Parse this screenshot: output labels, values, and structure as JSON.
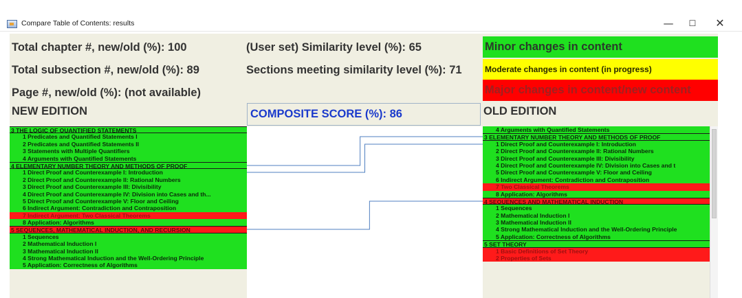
{
  "window": {
    "title": "Compare Table of Contents: results",
    "minimize": "—",
    "maximize": "☐",
    "close": "✕"
  },
  "stats": {
    "chapters": "Total chapter #, new/old (%): 100",
    "subsections": "Total subsection #, new/old (%): 89",
    "pages": "Page #, new/old (%): (not available)",
    "similarity_level": "(User set) Similarity level (%): 65",
    "sections_meeting": "Sections meeting similarity level (%): 71"
  },
  "legend": {
    "minor": "Minor changes in content",
    "moderate": "Moderate changes in content (in progress)",
    "major": "Major changes in content/new content",
    "colors": {
      "minor": "#1fe01f",
      "moderate": "#ffff00",
      "major": "#ff0000"
    }
  },
  "headers": {
    "new_edition": "NEW EDITION",
    "composite_score": "COMPOSITE SCORE (%): 86",
    "old_edition": "OLD EDITION"
  },
  "new_edition_items": [
    {
      "text": "3 THE LOGIC OF QUANTIFIED STATEMENTS",
      "kind": "chapter",
      "color": "green"
    },
    {
      "text": "1 Predicates and Quantified Statements I",
      "kind": "section",
      "color": "green"
    },
    {
      "text": "2 Predicates and Quantified Statements II",
      "kind": "section",
      "color": "green"
    },
    {
      "text": "3 Statements with Multiple Quantifiers",
      "kind": "section",
      "color": "green"
    },
    {
      "text": "4 Arguments with Quantified Statements",
      "kind": "section",
      "color": "green"
    },
    {
      "text": "4 ELEMENTARY NUMBER THEORY AND METHODS OF PROOF",
      "kind": "chapter",
      "color": "green"
    },
    {
      "text": "1 Direct Proof and Counterexample I: Introduction",
      "kind": "section",
      "color": "green"
    },
    {
      "text": "2 Direct Proof and Counterexample II: Rational Numbers",
      "kind": "section",
      "color": "green"
    },
    {
      "text": "3 Direct Proof and Counterexample III: Divisibility",
      "kind": "section",
      "color": "green"
    },
    {
      "text": "4 Direct Proof and Counterexample IV: Division into Cases and th...",
      "kind": "section",
      "color": "green"
    },
    {
      "text": "5 Direct Proof and Counterexample V: Floor and Ceiling",
      "kind": "section",
      "color": "green"
    },
    {
      "text": "6 Indirect Argument: Contradiction and Contraposition",
      "kind": "section",
      "color": "green"
    },
    {
      "text": "7 Indirect Argument: Two Classical Theorems",
      "kind": "section",
      "color": "red"
    },
    {
      "text": "8 Application: Algorithms",
      "kind": "section",
      "color": "green"
    },
    {
      "text": "5 SEQUENCES, MATHEMATICAL INDUCTION, AND RECURSION",
      "kind": "chapter",
      "color": "red"
    },
    {
      "text": "1 Sequences",
      "kind": "section",
      "color": "green"
    },
    {
      "text": "2 Mathematical Induction I",
      "kind": "section",
      "color": "green"
    },
    {
      "text": "3 Mathematical Induction II",
      "kind": "section",
      "color": "green"
    },
    {
      "text": "4 Strong Mathematical Induction and the Well-Ordering Principle",
      "kind": "section",
      "color": "green"
    },
    {
      "text": "5 Application: Correctness of Algorithms",
      "kind": "section",
      "color": "green"
    }
  ],
  "old_edition_items": [
    {
      "text": "4 Arguments with Quantified Statements",
      "kind": "section",
      "color": "green"
    },
    {
      "text": "3 ELEMENTARY NUMBER THEORY AND METHODS OF PROOF",
      "kind": "chapter",
      "color": "green"
    },
    {
      "text": "1 Direct Proof and Counterexample I: Introduction",
      "kind": "section",
      "color": "green"
    },
    {
      "text": "2 Direct Proof and Counterexample II: Rational Numbers",
      "kind": "section",
      "color": "green"
    },
    {
      "text": "3 Direct Proof and Counterexample III: Divisibility",
      "kind": "section",
      "color": "green"
    },
    {
      "text": "4 Direct Proof and Counterexample IV: Division into Cases and t",
      "kind": "section",
      "color": "green"
    },
    {
      "text": "5 Direct Proof and Counterexample V: Floor and Ceiling",
      "kind": "section",
      "color": "green"
    },
    {
      "text": "6 Indirect Argument: Contradiction and Contraposition",
      "kind": "section",
      "color": "green"
    },
    {
      "text": "7 Two Classical Theorems",
      "kind": "section",
      "color": "red"
    },
    {
      "text": "8 Application: Algorithms",
      "kind": "section",
      "color": "green"
    },
    {
      "text": "4 SEQUENCES AND MATHEMATICAL INDUCTION",
      "kind": "chapter",
      "color": "red"
    },
    {
      "text": "1 Sequences",
      "kind": "section",
      "color": "green"
    },
    {
      "text": "2 Mathematical Induction I",
      "kind": "section",
      "color": "green"
    },
    {
      "text": "3 Mathematical Induction II",
      "kind": "section",
      "color": "green"
    },
    {
      "text": "4 Strong Mathematical Induction and the Well-Ordering Principle",
      "kind": "section",
      "color": "green"
    },
    {
      "text": "5 Application: Correctness of Algorithms",
      "kind": "section",
      "color": "green"
    },
    {
      "text": "5 SET THEORY",
      "kind": "chapter",
      "color": "green"
    },
    {
      "text": "1 Basic Definitions of Set Theory",
      "kind": "section",
      "color": "red"
    },
    {
      "text": "2 Properties of Sets",
      "kind": "section",
      "color": "red"
    }
  ],
  "connections": [
    {
      "new_index": 5,
      "old_index": 1
    },
    {
      "new_index": 6,
      "old_index": 2
    },
    {
      "new_index": 14,
      "old_index": 10
    }
  ],
  "connector_color": "#4f7fc0"
}
